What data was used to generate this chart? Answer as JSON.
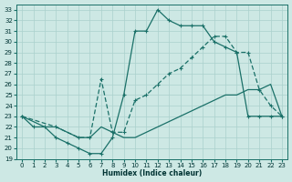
{
  "xlabel": "Humidex (Indice chaleur)",
  "xlim": [
    -0.5,
    23.5
  ],
  "ylim": [
    19,
    33.5
  ],
  "xticks": [
    0,
    1,
    2,
    3,
    4,
    5,
    6,
    7,
    8,
    9,
    10,
    11,
    12,
    13,
    14,
    15,
    16,
    17,
    18,
    19,
    20,
    21,
    22,
    23
  ],
  "yticks": [
    19,
    20,
    21,
    22,
    23,
    24,
    25,
    26,
    27,
    28,
    29,
    30,
    31,
    32,
    33
  ],
  "bg_color": "#cde8e4",
  "grid_color": "#aad0cc",
  "line_color": "#1a7068",
  "curve1_x": [
    0,
    1,
    2,
    3,
    4,
    5,
    6,
    7,
    8,
    9,
    10,
    11,
    12,
    13,
    14,
    15,
    16,
    17,
    18,
    19,
    20,
    21,
    22,
    23
  ],
  "curve1_y": [
    23,
    22,
    22,
    21,
    20.5,
    20,
    19.5,
    19.5,
    21,
    25,
    31,
    31,
    33,
    32,
    31.5,
    31.5,
    31.5,
    30,
    29.5,
    29,
    23,
    23,
    23,
    23
  ],
  "curve2_x": [
    0,
    1,
    2,
    3,
    4,
    5,
    6,
    7,
    8,
    9,
    10,
    11,
    12,
    13,
    14,
    15,
    16,
    17,
    18,
    19,
    20,
    21,
    22,
    23
  ],
  "curve2_y": [
    23,
    22.5,
    22,
    22,
    21.5,
    21,
    21,
    22,
    21.5,
    21,
    21,
    21.5,
    22,
    22.5,
    23,
    23.5,
    24,
    24.5,
    25,
    25,
    25.5,
    25.5,
    26,
    23
  ],
  "curve3_x": [
    0,
    3,
    5,
    6,
    7,
    8,
    9,
    10,
    11,
    12,
    13,
    14,
    15,
    16,
    17,
    18,
    19,
    20,
    21,
    22,
    23
  ],
  "curve3_y": [
    23,
    22,
    21,
    21,
    26.5,
    21.5,
    21.5,
    24.5,
    25,
    26,
    27,
    27.5,
    28.5,
    29.5,
    30.5,
    30.5,
    29,
    29,
    25.5,
    24,
    23
  ]
}
